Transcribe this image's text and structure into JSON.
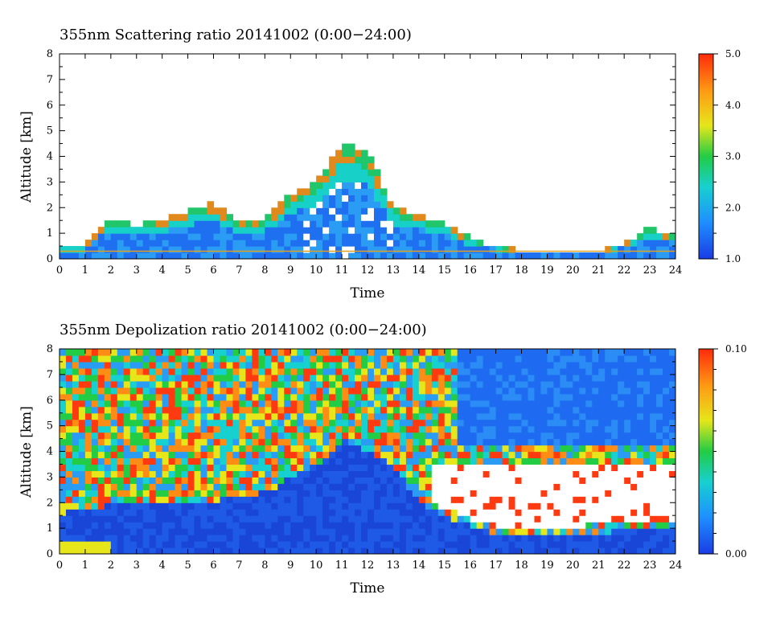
{
  "chart_data": [
    {
      "type": "heatmap",
      "title": "355nm Scattering ratio  20141002 (0:00−24:00)",
      "xlabel": "Time",
      "ylabel": "Altitude [km]",
      "xlim": [
        0,
        24
      ],
      "ylim": [
        0,
        8
      ],
      "x_ticks": [
        "0",
        "1",
        "2",
        "3",
        "4",
        "5",
        "6",
        "7",
        "8",
        "9",
        "10",
        "11",
        "12",
        "13",
        "14",
        "15",
        "16",
        "17",
        "18",
        "19",
        "20",
        "21",
        "22",
        "23",
        "24"
      ],
      "y_ticks": [
        "0",
        "1",
        "2",
        "3",
        "4",
        "5",
        "6",
        "7",
        "8"
      ],
      "colorbar": {
        "ticks": [
          "1.0",
          "2.0",
          "3.0",
          "4.0",
          "5.0"
        ],
        "min": 1.0,
        "max": 5.0
      },
      "layer_top_km": [
        [
          0,
          0.5
        ],
        [
          1,
          0.5
        ],
        [
          1.5,
          1.2
        ],
        [
          2,
          1.6
        ],
        [
          3,
          1.3
        ],
        [
          4,
          1.5
        ],
        [
          5,
          1.9
        ],
        [
          6,
          2.2
        ],
        [
          7,
          1.4
        ],
        [
          8,
          1.5
        ],
        [
          9,
          2.5
        ],
        [
          10,
          3.0
        ],
        [
          11,
          4.5
        ],
        [
          12,
          4.2
        ],
        [
          13,
          2.0
        ],
        [
          14,
          1.7
        ],
        [
          15,
          1.4
        ],
        [
          16,
          0.8
        ],
        [
          17,
          0.5
        ],
        [
          18,
          0.3
        ],
        [
          19,
          0.3
        ],
        [
          20,
          0.3
        ],
        [
          21,
          0.3
        ],
        [
          22,
          0.6
        ],
        [
          23,
          1.2
        ],
        [
          24,
          0.9
        ]
      ]
    },
    {
      "type": "heatmap",
      "title": "355nm Depolization ratio  20141002 (0:00−24:00)",
      "xlabel": "Time",
      "ylabel": "Altitude [km]",
      "xlim": [
        0,
        24
      ],
      "ylim": [
        0,
        8
      ],
      "x_ticks": [
        "0",
        "1",
        "2",
        "3",
        "4",
        "5",
        "6",
        "7",
        "8",
        "9",
        "10",
        "11",
        "12",
        "13",
        "14",
        "15",
        "16",
        "17",
        "18",
        "19",
        "20",
        "21",
        "22",
        "23",
        "24"
      ],
      "y_ticks": [
        "0",
        "1",
        "2",
        "3",
        "4",
        "5",
        "6",
        "7",
        "8"
      ],
      "colorbar": {
        "ticks": [
          "0.00",
          "0.10"
        ],
        "min": 0.0,
        "max": 0.1
      },
      "boundary_layer_top_km": [
        [
          0,
          1.6
        ],
        [
          2,
          1.9
        ],
        [
          4,
          2.0
        ],
        [
          6,
          2.1
        ],
        [
          8,
          2.4
        ],
        [
          10,
          3.5
        ],
        [
          11,
          4.5
        ],
        [
          12,
          4.0
        ],
        [
          13,
          3.5
        ],
        [
          14,
          2.0
        ],
        [
          15,
          1.5
        ],
        [
          16,
          1.1
        ],
        [
          17,
          0.8
        ],
        [
          18,
          0.7
        ],
        [
          20,
          0.8
        ],
        [
          22,
          0.9
        ],
        [
          24,
          1.0
        ]
      ]
    }
  ]
}
